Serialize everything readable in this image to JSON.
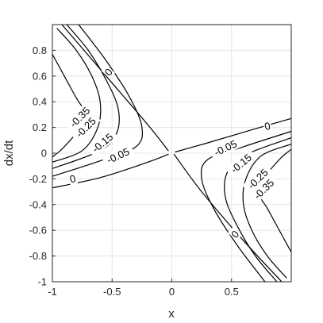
{
  "chart_data": {
    "type": "contour",
    "xlabel": "x",
    "ylabel": "dx/dt",
    "xlim": [
      -1,
      1
    ],
    "ylim": [
      -1,
      1
    ],
    "xticks": [
      {
        "value": -1,
        "label": "-1"
      },
      {
        "value": -0.5,
        "label": "-0.5"
      },
      {
        "value": 0,
        "label": "0"
      },
      {
        "value": 0.5,
        "label": "0.5"
      }
    ],
    "yticks": [
      {
        "value": 0.8,
        "label": "0.8"
      },
      {
        "value": 0.6,
        "label": "0.6"
      },
      {
        "value": 0.4,
        "label": "0.4"
      },
      {
        "value": 0.2,
        "label": "0.2"
      },
      {
        "value": 0,
        "label": "0"
      },
      {
        "value": -0.2,
        "label": "-0.2"
      },
      {
        "value": -0.4,
        "label": "-0.4"
      },
      {
        "value": -0.6,
        "label": "-0.6"
      },
      {
        "value": -0.8,
        "label": "-0.8"
      },
      {
        "value": -1,
        "label": "-1"
      }
    ],
    "grid": true,
    "line_color": "#000000",
    "contours": [
      {
        "level": 0,
        "label": "0",
        "points": [
          [
            -0.92,
            1.0
          ],
          [
            -0.55,
            0.6
          ],
          [
            -0.2,
            0.22
          ],
          [
            -0.03,
            0.02
          ]
        ]
      },
      {
        "level": 0,
        "label": "0",
        "points": [
          [
            -1.0,
            -0.27
          ],
          [
            -0.6,
            -0.19
          ],
          [
            -0.2,
            -0.07
          ],
          [
            -0.03,
            -0.01
          ]
        ]
      },
      {
        "level": 0,
        "label": "0",
        "points": [
          [
            0.03,
            0.01
          ],
          [
            0.3,
            0.08
          ],
          [
            0.7,
            0.19
          ],
          [
            1.0,
            0.27
          ]
        ]
      },
      {
        "level": 0,
        "label": "0",
        "points": [
          [
            0.02,
            -0.01
          ],
          [
            0.25,
            -0.3
          ],
          [
            0.6,
            -0.68
          ],
          [
            0.92,
            -1.0
          ]
        ]
      },
      {
        "level": -0.35,
        "label": "-0.35",
        "points": [
          [
            -1.0,
            0.77
          ],
          [
            -0.9,
            0.6
          ],
          [
            -0.8,
            0.43
          ],
          [
            -0.73,
            0.32
          ],
          [
            -0.75,
            0.22
          ],
          [
            -0.9,
            0.05
          ],
          [
            -1.0,
            -0.03
          ]
        ]
      },
      {
        "level": -0.25,
        "label": "-0.25",
        "points": [
          [
            -0.96,
            0.97
          ],
          [
            -0.8,
            0.8
          ],
          [
            -0.67,
            0.6
          ],
          [
            -0.6,
            0.4
          ],
          [
            -0.62,
            0.2
          ],
          [
            -0.75,
            0.02
          ],
          [
            -1.0,
            -0.07
          ]
        ]
      },
      {
        "level": -0.15,
        "label": "-0.15",
        "points": [
          [
            -0.88,
            1.0
          ],
          [
            -0.7,
            0.8
          ],
          [
            -0.55,
            0.57
          ],
          [
            -0.45,
            0.35
          ],
          [
            -0.46,
            0.16
          ],
          [
            -0.6,
            0.02
          ],
          [
            -1.0,
            -0.12
          ]
        ]
      },
      {
        "level": -0.05,
        "label": "-0.05",
        "points": [
          [
            -0.78,
            1.0
          ],
          [
            -0.55,
            0.72
          ],
          [
            -0.35,
            0.43
          ],
          [
            -0.25,
            0.2
          ],
          [
            -0.3,
            0.05
          ],
          [
            -0.6,
            -0.06
          ],
          [
            -1.0,
            -0.18
          ]
        ]
      },
      {
        "level": -0.05,
        "label": "-0.05",
        "points": [
          [
            1.0,
            0.17
          ],
          [
            0.6,
            0.05
          ],
          [
            0.3,
            -0.05
          ],
          [
            0.25,
            -0.2
          ],
          [
            0.35,
            -0.43
          ],
          [
            0.55,
            -0.72
          ],
          [
            0.78,
            -1.0
          ]
        ]
      },
      {
        "level": -0.15,
        "label": "-0.15",
        "points": [
          [
            1.0,
            0.12
          ],
          [
            0.6,
            -0.02
          ],
          [
            0.46,
            -0.16
          ],
          [
            0.45,
            -0.35
          ],
          [
            0.55,
            -0.57
          ],
          [
            0.7,
            -0.8
          ],
          [
            0.88,
            -1.0
          ]
        ]
      },
      {
        "level": -0.25,
        "label": "-0.25",
        "points": [
          [
            1.0,
            0.07
          ],
          [
            0.75,
            -0.02
          ],
          [
            0.62,
            -0.2
          ],
          [
            0.6,
            -0.4
          ],
          [
            0.67,
            -0.6
          ],
          [
            0.8,
            -0.8
          ],
          [
            0.96,
            -0.97
          ]
        ]
      },
      {
        "level": -0.35,
        "label": "-0.35",
        "points": [
          [
            1.0,
            0.03
          ],
          [
            0.9,
            -0.05
          ],
          [
            0.75,
            -0.22
          ],
          [
            0.73,
            -0.32
          ],
          [
            0.8,
            -0.43
          ],
          [
            0.9,
            -0.6
          ],
          [
            1.0,
            -0.77
          ]
        ]
      }
    ],
    "contour_labels": [
      {
        "text": "0",
        "x": -0.53,
        "y": 0.63,
        "angle": -50
      },
      {
        "text": "0",
        "x": -0.83,
        "y": -0.2,
        "angle": -15
      },
      {
        "text": "0",
        "x": 0.8,
        "y": 0.21,
        "angle": -15
      },
      {
        "text": "0",
        "x": 0.53,
        "y": -0.63,
        "angle": -50
      },
      {
        "text": "-0.35",
        "x": -0.77,
        "y": 0.28,
        "angle": -45
      },
      {
        "text": "-0.25",
        "x": -0.72,
        "y": 0.2,
        "angle": -45
      },
      {
        "text": "-0.15",
        "x": -0.58,
        "y": 0.08,
        "angle": -40
      },
      {
        "text": "-0.05",
        "x": -0.45,
        "y": -0.02,
        "angle": -25
      },
      {
        "text": "-0.05",
        "x": 0.45,
        "y": 0.04,
        "angle": -25
      },
      {
        "text": "-0.15",
        "x": 0.58,
        "y": -0.08,
        "angle": -40
      },
      {
        "text": "-0.25",
        "x": 0.72,
        "y": -0.2,
        "angle": -45
      },
      {
        "text": "-0.35",
        "x": 0.77,
        "y": -0.28,
        "angle": -45
      }
    ]
  }
}
